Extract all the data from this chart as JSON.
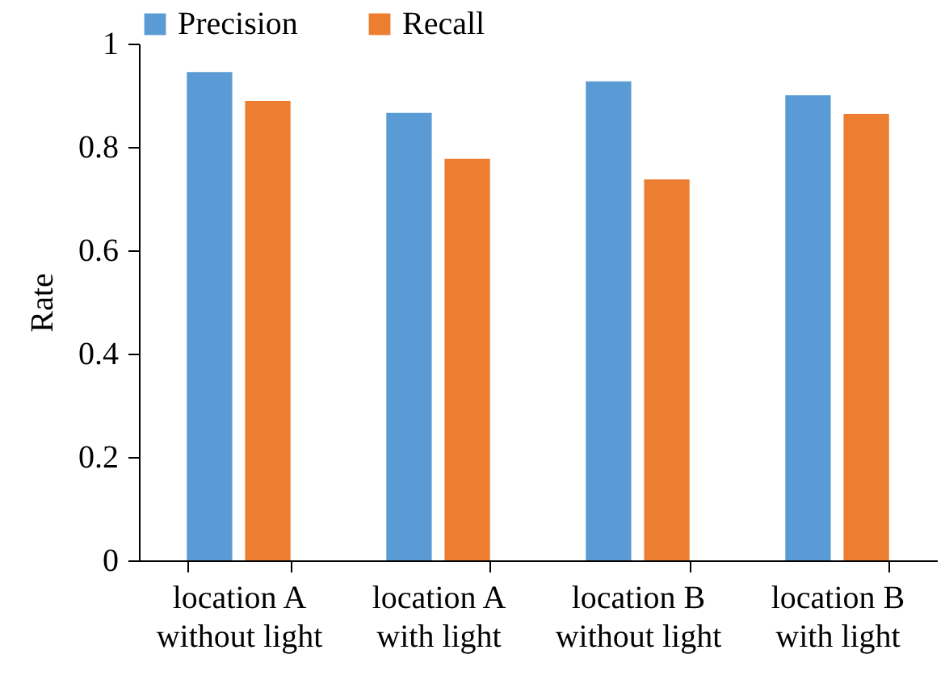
{
  "chart_data": {
    "type": "bar",
    "ylabel": "Rate",
    "categories": [
      "location A\nwithout light",
      "location A\nwith light",
      "location B\nwithout light",
      "location B\nwith light"
    ],
    "series": [
      {
        "name": "Precision",
        "color": "#5b9bd5",
        "values": [
          0.945,
          0.866,
          0.927,
          0.9
        ]
      },
      {
        "name": "Recall",
        "color": "#ed7d31",
        "values": [
          0.889,
          0.777,
          0.737,
          0.864
        ]
      }
    ],
    "ylim": [
      0,
      1
    ],
    "yticks": [
      0,
      0.2,
      0.4,
      0.6,
      0.8,
      1
    ],
    "grid": false,
    "legend": "top"
  }
}
